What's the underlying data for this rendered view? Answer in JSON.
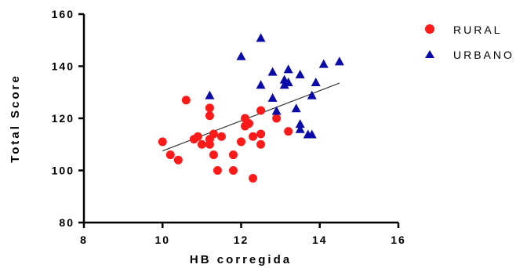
{
  "chart_data": {
    "type": "scatter",
    "xlabel": "HB corregida",
    "ylabel": "Total Score",
    "xlim": [
      8,
      16
    ],
    "ylim": [
      80,
      160
    ],
    "x_ticks": [
      "8",
      "10",
      "12",
      "14",
      "16"
    ],
    "y_ticks": [
      "80",
      "100",
      "120",
      "140",
      "160"
    ],
    "legend_position": "top-right",
    "grid": false,
    "series": [
      {
        "name": "RURAL",
        "marker": "circle",
        "color": "#ff1a1a",
        "points": [
          {
            "x": 10.0,
            "y": 111
          },
          {
            "x": 10.2,
            "y": 106
          },
          {
            "x": 10.4,
            "y": 104
          },
          {
            "x": 10.6,
            "y": 127
          },
          {
            "x": 10.8,
            "y": 112
          },
          {
            "x": 10.9,
            "y": 113
          },
          {
            "x": 11.0,
            "y": 110
          },
          {
            "x": 11.2,
            "y": 124
          },
          {
            "x": 11.2,
            "y": 121
          },
          {
            "x": 11.2,
            "y": 110
          },
          {
            "x": 11.2,
            "y": 112
          },
          {
            "x": 11.3,
            "y": 114
          },
          {
            "x": 11.3,
            "y": 106
          },
          {
            "x": 11.4,
            "y": 100
          },
          {
            "x": 11.5,
            "y": 113
          },
          {
            "x": 11.8,
            "y": 106
          },
          {
            "x": 11.8,
            "y": 100
          },
          {
            "x": 12.0,
            "y": 111
          },
          {
            "x": 12.1,
            "y": 120
          },
          {
            "x": 12.1,
            "y": 117
          },
          {
            "x": 12.2,
            "y": 118
          },
          {
            "x": 12.3,
            "y": 113
          },
          {
            "x": 12.3,
            "y": 97
          },
          {
            "x": 12.5,
            "y": 123
          },
          {
            "x": 12.5,
            "y": 114
          },
          {
            "x": 12.5,
            "y": 110
          },
          {
            "x": 12.9,
            "y": 120
          },
          {
            "x": 13.2,
            "y": 115
          }
        ]
      },
      {
        "name": "URBANO",
        "marker": "triangle",
        "color": "#0a0aa8",
        "points": [
          {
            "x": 11.2,
            "y": 129
          },
          {
            "x": 12.0,
            "y": 144
          },
          {
            "x": 12.5,
            "y": 151
          },
          {
            "x": 12.5,
            "y": 133
          },
          {
            "x": 12.8,
            "y": 138
          },
          {
            "x": 12.8,
            "y": 128
          },
          {
            "x": 12.9,
            "y": 123
          },
          {
            "x": 13.1,
            "y": 135
          },
          {
            "x": 13.1,
            "y": 133
          },
          {
            "x": 13.2,
            "y": 139
          },
          {
            "x": 13.2,
            "y": 134
          },
          {
            "x": 13.4,
            "y": 124
          },
          {
            "x": 13.5,
            "y": 137
          },
          {
            "x": 13.5,
            "y": 118
          },
          {
            "x": 13.5,
            "y": 116
          },
          {
            "x": 13.7,
            "y": 114
          },
          {
            "x": 13.8,
            "y": 129
          },
          {
            "x": 13.8,
            "y": 114
          },
          {
            "x": 13.9,
            "y": 134
          },
          {
            "x": 14.1,
            "y": 141
          },
          {
            "x": 14.5,
            "y": 142
          }
        ]
      }
    ],
    "trendline": {
      "x": [
        10.0,
        14.5
      ],
      "y": [
        107.5,
        133.5
      ],
      "color": "#333333"
    }
  }
}
